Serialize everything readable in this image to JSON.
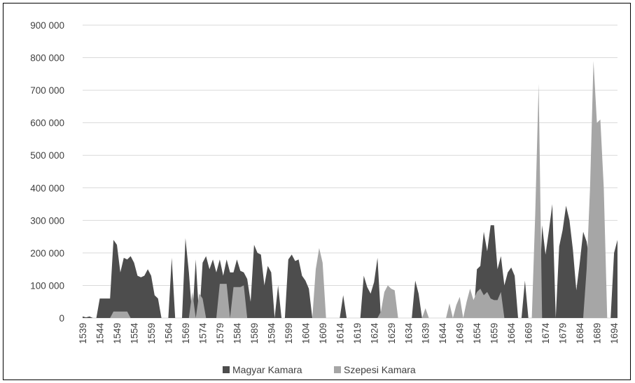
{
  "chart_data": {
    "type": "area",
    "title": "",
    "xlabel": "",
    "ylabel": "",
    "ylim": [
      0,
      900000
    ],
    "yticks": [
      "0",
      "100 000",
      "200 000",
      "300 000",
      "400 000",
      "500 000",
      "600 000",
      "700 000",
      "800 000",
      "900 000"
    ],
    "yvalues": [
      0,
      100000,
      200000,
      300000,
      400000,
      500000,
      600000,
      700000,
      800000,
      900000
    ],
    "xlabels": [
      "1539",
      "1544",
      "1549",
      "1554",
      "1559",
      "1564",
      "1569",
      "1574",
      "1579",
      "1584",
      "1589",
      "1594",
      "1599",
      "1604",
      "1609",
      "1614",
      "1619",
      "1624",
      "1629",
      "1634",
      "1639",
      "1644",
      "1649",
      "1654",
      "1659",
      "1664",
      "1669",
      "1674",
      "1679",
      "1684",
      "1689",
      "1694"
    ],
    "grid": "horizontal",
    "legend_position": "bottom",
    "x_start": 1539,
    "x_end": 1695,
    "series": [
      {
        "name": "Magyar Kamara",
        "color": "#4d4d4d",
        "points": [
          [
            1539,
            5000
          ],
          [
            1540,
            2000
          ],
          [
            1541,
            5000
          ],
          [
            1542,
            0
          ],
          [
            1543,
            0
          ],
          [
            1544,
            60000
          ],
          [
            1545,
            60000
          ],
          [
            1546,
            60000
          ],
          [
            1547,
            60000
          ],
          [
            1548,
            240000
          ],
          [
            1549,
            225000
          ],
          [
            1550,
            140000
          ],
          [
            1551,
            185000
          ],
          [
            1552,
            180000
          ],
          [
            1553,
            190000
          ],
          [
            1554,
            170000
          ],
          [
            1555,
            130000
          ],
          [
            1556,
            125000
          ],
          [
            1557,
            130000
          ],
          [
            1558,
            150000
          ],
          [
            1559,
            130000
          ],
          [
            1560,
            70000
          ],
          [
            1561,
            60000
          ],
          [
            1562,
            0
          ],
          [
            1563,
            0
          ],
          [
            1564,
            0
          ],
          [
            1565,
            185000
          ],
          [
            1566,
            0
          ],
          [
            1567,
            0
          ],
          [
            1568,
            0
          ],
          [
            1569,
            245000
          ],
          [
            1570,
            140000
          ],
          [
            1571,
            0
          ],
          [
            1572,
            180000
          ],
          [
            1573,
            0
          ],
          [
            1574,
            170000
          ],
          [
            1575,
            190000
          ],
          [
            1576,
            150000
          ],
          [
            1577,
            180000
          ],
          [
            1578,
            140000
          ],
          [
            1579,
            180000
          ],
          [
            1580,
            130000
          ],
          [
            1581,
            180000
          ],
          [
            1582,
            140000
          ],
          [
            1583,
            140000
          ],
          [
            1584,
            180000
          ],
          [
            1585,
            145000
          ],
          [
            1586,
            140000
          ],
          [
            1587,
            120000
          ],
          [
            1588,
            50000
          ],
          [
            1589,
            225000
          ],
          [
            1590,
            200000
          ],
          [
            1591,
            195000
          ],
          [
            1592,
            100000
          ],
          [
            1593,
            160000
          ],
          [
            1594,
            140000
          ],
          [
            1595,
            0
          ],
          [
            1596,
            100000
          ],
          [
            1597,
            0
          ],
          [
            1598,
            0
          ],
          [
            1599,
            180000
          ],
          [
            1600,
            195000
          ],
          [
            1601,
            175000
          ],
          [
            1602,
            180000
          ],
          [
            1603,
            130000
          ],
          [
            1604,
            115000
          ],
          [
            1605,
            90000
          ],
          [
            1606,
            0
          ],
          [
            1607,
            0
          ],
          [
            1608,
            0
          ],
          [
            1609,
            0
          ],
          [
            1610,
            0
          ],
          [
            1611,
            0
          ],
          [
            1612,
            0
          ],
          [
            1613,
            0
          ],
          [
            1614,
            0
          ],
          [
            1615,
            70000
          ],
          [
            1616,
            0
          ],
          [
            1617,
            0
          ],
          [
            1618,
            0
          ],
          [
            1619,
            0
          ],
          [
            1620,
            0
          ],
          [
            1621,
            130000
          ],
          [
            1622,
            95000
          ],
          [
            1623,
            75000
          ],
          [
            1624,
            110000
          ],
          [
            1625,
            185000
          ],
          [
            1626,
            0
          ],
          [
            1627,
            0
          ],
          [
            1628,
            0
          ],
          [
            1629,
            0
          ],
          [
            1630,
            0
          ],
          [
            1631,
            0
          ],
          [
            1632,
            0
          ],
          [
            1633,
            0
          ],
          [
            1634,
            0
          ],
          [
            1635,
            0
          ],
          [
            1636,
            115000
          ],
          [
            1637,
            75000
          ],
          [
            1638,
            0
          ],
          [
            1639,
            0
          ],
          [
            1640,
            0
          ],
          [
            1641,
            0
          ],
          [
            1642,
            0
          ],
          [
            1643,
            0
          ],
          [
            1644,
            0
          ],
          [
            1645,
            0
          ],
          [
            1646,
            0
          ],
          [
            1647,
            0
          ],
          [
            1648,
            0
          ],
          [
            1649,
            0
          ],
          [
            1650,
            0
          ],
          [
            1651,
            0
          ],
          [
            1652,
            0
          ],
          [
            1653,
            0
          ],
          [
            1654,
            150000
          ],
          [
            1655,
            160000
          ],
          [
            1656,
            265000
          ],
          [
            1657,
            205000
          ],
          [
            1658,
            285000
          ],
          [
            1659,
            285000
          ],
          [
            1660,
            150000
          ],
          [
            1661,
            190000
          ],
          [
            1662,
            100000
          ],
          [
            1663,
            140000
          ],
          [
            1664,
            155000
          ],
          [
            1665,
            130000
          ],
          [
            1666,
            0
          ],
          [
            1667,
            0
          ],
          [
            1668,
            115000
          ],
          [
            1669,
            0
          ],
          [
            1670,
            0
          ],
          [
            1671,
            0
          ],
          [
            1672,
            0
          ],
          [
            1673,
            285000
          ],
          [
            1674,
            195000
          ],
          [
            1675,
            270000
          ],
          [
            1676,
            350000
          ],
          [
            1677,
            0
          ],
          [
            1678,
            220000
          ],
          [
            1679,
            270000
          ],
          [
            1680,
            345000
          ],
          [
            1681,
            300000
          ],
          [
            1682,
            210000
          ],
          [
            1683,
            85000
          ],
          [
            1684,
            170000
          ],
          [
            1685,
            265000
          ],
          [
            1686,
            235000
          ],
          [
            1687,
            165000
          ],
          [
            1688,
            130000
          ],
          [
            1689,
            0
          ],
          [
            1690,
            0
          ],
          [
            1691,
            0
          ],
          [
            1692,
            0
          ],
          [
            1693,
            0
          ],
          [
            1694,
            200000
          ],
          [
            1695,
            240000
          ]
        ]
      },
      {
        "name": "Szepesi Kamara",
        "color": "#a6a6a6",
        "points": [
          [
            1539,
            0
          ],
          [
            1547,
            0
          ],
          [
            1548,
            20000
          ],
          [
            1549,
            20000
          ],
          [
            1550,
            20000
          ],
          [
            1551,
            20000
          ],
          [
            1552,
            20000
          ],
          [
            1553,
            0
          ],
          [
            1570,
            0
          ],
          [
            1571,
            80000
          ],
          [
            1572,
            0
          ],
          [
            1573,
            75000
          ],
          [
            1574,
            60000
          ],
          [
            1575,
            0
          ],
          [
            1578,
            0
          ],
          [
            1579,
            105000
          ],
          [
            1580,
            105000
          ],
          [
            1581,
            105000
          ],
          [
            1582,
            0
          ],
          [
            1583,
            95000
          ],
          [
            1584,
            95000
          ],
          [
            1585,
            95000
          ],
          [
            1586,
            100000
          ],
          [
            1587,
            0
          ],
          [
            1606,
            0
          ],
          [
            1607,
            150000
          ],
          [
            1608,
            215000
          ],
          [
            1609,
            170000
          ],
          [
            1610,
            0
          ],
          [
            1625,
            0
          ],
          [
            1626,
            20000
          ],
          [
            1627,
            80000
          ],
          [
            1628,
            100000
          ],
          [
            1629,
            90000
          ],
          [
            1630,
            85000
          ],
          [
            1631,
            0
          ],
          [
            1638,
            0
          ],
          [
            1639,
            30000
          ],
          [
            1640,
            0
          ],
          [
            1645,
            0
          ],
          [
            1646,
            45000
          ],
          [
            1647,
            0
          ],
          [
            1648,
            40000
          ],
          [
            1649,
            65000
          ],
          [
            1650,
            0
          ],
          [
            1651,
            50000
          ],
          [
            1652,
            90000
          ],
          [
            1653,
            55000
          ],
          [
            1654,
            80000
          ],
          [
            1655,
            90000
          ],
          [
            1656,
            70000
          ],
          [
            1657,
            80000
          ],
          [
            1658,
            60000
          ],
          [
            1659,
            55000
          ],
          [
            1660,
            55000
          ],
          [
            1661,
            80000
          ],
          [
            1662,
            0
          ],
          [
            1670,
            0
          ],
          [
            1671,
            320000
          ],
          [
            1672,
            720000
          ],
          [
            1673,
            0
          ],
          [
            1685,
            0
          ],
          [
            1686,
            150000
          ],
          [
            1687,
            400000
          ],
          [
            1688,
            790000
          ],
          [
            1689,
            600000
          ],
          [
            1690,
            610000
          ],
          [
            1691,
            400000
          ],
          [
            1692,
            0
          ],
          [
            1695,
            0
          ]
        ]
      }
    ]
  }
}
